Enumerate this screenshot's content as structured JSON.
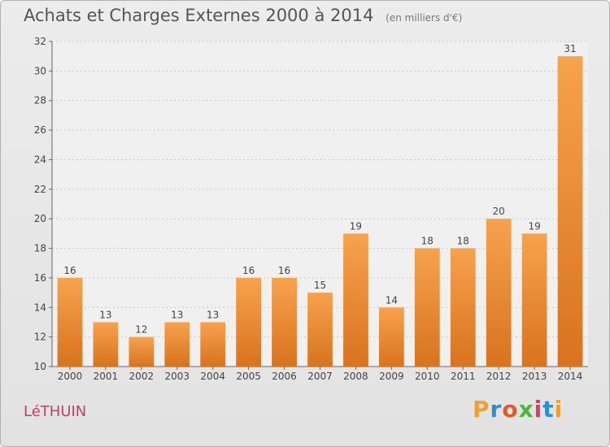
{
  "chart_data": {
    "type": "bar",
    "title": "Achats et Charges Externes 2000 à 2014",
    "subtitle": "(en milliers d'€)",
    "categories": [
      "2000",
      "2001",
      "2002",
      "2003",
      "2004",
      "2005",
      "2006",
      "2007",
      "2008",
      "2009",
      "2010",
      "2011",
      "2012",
      "2013",
      "2014"
    ],
    "values": [
      16,
      13,
      12,
      13,
      13,
      16,
      16,
      15,
      19,
      14,
      18,
      18,
      20,
      19,
      31
    ],
    "ylim": [
      10,
      32
    ],
    "yticks": [
      10,
      12,
      14,
      16,
      18,
      20,
      22,
      24,
      26,
      28,
      30,
      32
    ],
    "xlabel": "",
    "ylabel": "",
    "grid": true,
    "bar_color_top": "#f7a24e",
    "bar_color_bottom": "#d8731e"
  },
  "place_label": "LéTHUIN",
  "logo": {
    "text": "Proxiti",
    "colors": [
      "#f0a030",
      "#2a8fd4",
      "#e05a2a",
      "#49b83c",
      "#e03a6a",
      "#2a8fd4",
      "#f0a030"
    ]
  }
}
